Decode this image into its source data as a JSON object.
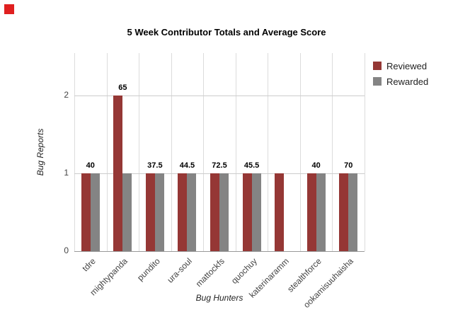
{
  "decor": {
    "red_square_color": "#e01f1f"
  },
  "chart_data": {
    "type": "bar",
    "title": "5 Week Contributor Totals and Average Score",
    "xlabel": "Bug Hunters",
    "ylabel": "Bug Reports",
    "categories": [
      "tdre",
      "mightypanda",
      "pundito",
      "ura-soul",
      "mattockfs",
      "quochuy",
      "katerinaramm",
      "stealthforce",
      "ookamisuuhaisha"
    ],
    "series": [
      {
        "name": "Reviewed",
        "color": "#953735",
        "values": [
          1,
          2,
          1,
          1,
          1,
          1,
          1,
          1,
          1
        ]
      },
      {
        "name": "Rewarded",
        "color": "#848484",
        "values": [
          1,
          1,
          1,
          1,
          1,
          1,
          0,
          1,
          1
        ]
      }
    ],
    "bar_labels": [
      "40",
      "65",
      "37.5",
      "44.5",
      "72.5",
      "45.5",
      "",
      "40",
      "70"
    ],
    "yticks": [
      0,
      1,
      2
    ],
    "ylim": [
      0,
      2.55
    ],
    "grid": true,
    "legend_position": "right"
  }
}
